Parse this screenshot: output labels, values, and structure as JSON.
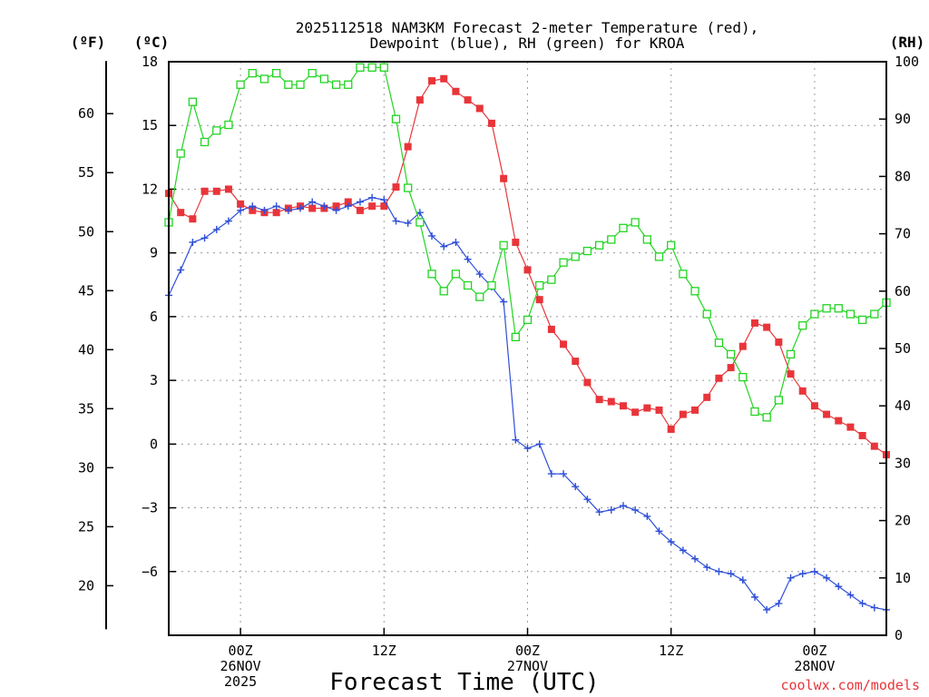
{
  "chart_data": {
    "type": "line",
    "title_line1": "2025112518 NAM3KM Forecast 2-meter Temperature (red),",
    "title_line2": "Dewpoint (blue), RH (green) for KROA",
    "xlabel": "Forecast Time (UTC)",
    "credit": "coolwx.com/models",
    "units": {
      "fahrenheit": "(ºF)",
      "celsius": "(ºC)",
      "rh": "(RH)"
    },
    "x_unit": "forecast hour from 2025-11-25 18Z",
    "xlim": [
      0,
      60
    ],
    "x_ticks": [
      {
        "hour": 6,
        "lines": [
          "00Z",
          "26NOV",
          "2025"
        ]
      },
      {
        "hour": 18,
        "lines": [
          "12Z"
        ]
      },
      {
        "hour": 30,
        "lines": [
          "00Z",
          "27NOV"
        ]
      },
      {
        "hour": 42,
        "lines": [
          "12Z"
        ]
      },
      {
        "hour": 54,
        "lines": [
          "00Z",
          "28NOV"
        ]
      }
    ],
    "celsius_axis": {
      "ylim": [
        -9,
        18
      ],
      "ticks": [
        "18",
        "15",
        "12",
        "9",
        "6",
        "3",
        "0",
        "−3",
        "−6"
      ]
    },
    "fahrenheit_axis": {
      "ticks": [
        "60",
        "55",
        "50",
        "45",
        "40",
        "35",
        "30",
        "25",
        "20"
      ]
    },
    "rh_axis": {
      "ylim": [
        0,
        100
      ],
      "ticks": [
        "100",
        "90",
        "80",
        "70",
        "60",
        "50",
        "40",
        "30",
        "20",
        "10",
        "0"
      ]
    },
    "series": [
      {
        "name": "2-meter Temperature (°C)",
        "color": "#e8353a",
        "marker": "filled-square",
        "axis": "celsius",
        "x": [
          0,
          1,
          2,
          3,
          4,
          5,
          6,
          7,
          8,
          9,
          10,
          11,
          12,
          13,
          14,
          15,
          16,
          17,
          18,
          19,
          20,
          21,
          22,
          23,
          24,
          25,
          26,
          27,
          28,
          29,
          30,
          31,
          32,
          33,
          34,
          35,
          36,
          37,
          38,
          39,
          40,
          41,
          42,
          43,
          44,
          45,
          46,
          47,
          48,
          49,
          50,
          51,
          52,
          53,
          54,
          55,
          56,
          57,
          58,
          59,
          60
        ],
        "values": [
          11.8,
          10.9,
          10.6,
          11.9,
          11.9,
          12.0,
          11.3,
          11.0,
          10.9,
          10.9,
          11.1,
          11.2,
          11.1,
          11.1,
          11.2,
          11.4,
          11.0,
          11.2,
          11.2,
          12.1,
          14.0,
          16.2,
          17.1,
          17.2,
          16.6,
          16.2,
          15.8,
          15.1,
          12.5,
          9.5,
          8.2,
          6.8,
          5.4,
          4.7,
          3.9,
          2.9,
          2.1,
          2.0,
          1.8,
          1.5,
          1.7,
          1.6,
          0.7,
          1.4,
          1.6,
          2.2,
          3.1,
          3.6,
          4.6,
          5.7,
          5.5,
          4.8,
          3.3,
          2.5,
          1.8,
          1.4,
          1.1,
          0.8,
          0.4,
          -0.1,
          -0.5
        ]
      },
      {
        "name": "Dewpoint (°C)",
        "color": "#2f4fd8",
        "marker": "plus",
        "axis": "celsius",
        "x": [
          0,
          1,
          2,
          3,
          4,
          5,
          6,
          7,
          8,
          9,
          10,
          11,
          12,
          13,
          14,
          15,
          16,
          17,
          18,
          19,
          20,
          21,
          22,
          23,
          24,
          25,
          26,
          27,
          28,
          29,
          30,
          31,
          32,
          33,
          34,
          35,
          36,
          37,
          38,
          39,
          40,
          41,
          42,
          43,
          44,
          45,
          46,
          47,
          48,
          49,
          50,
          51,
          52,
          53,
          54,
          55,
          56,
          57,
          58,
          59,
          60
        ],
        "values": [
          7.0,
          8.2,
          9.5,
          9.7,
          10.1,
          10.5,
          11.0,
          11.2,
          11.0,
          11.2,
          11.0,
          11.1,
          11.4,
          11.2,
          11.0,
          11.2,
          11.4,
          11.6,
          11.5,
          10.5,
          10.4,
          10.9,
          9.8,
          9.3,
          9.5,
          8.7,
          8.0,
          7.4,
          6.7,
          0.2,
          -0.2,
          0.0,
          -1.4,
          -1.4,
          -2.0,
          -2.6,
          -3.2,
          -3.1,
          -2.9,
          -3.1,
          -3.4,
          -4.1,
          -4.6,
          -5.0,
          -5.4,
          -5.8,
          -6.0,
          -6.1,
          -6.4,
          -7.2,
          -7.8,
          -7.5,
          -6.3,
          -6.1,
          -6.0,
          -6.3,
          -6.7,
          -7.1,
          -7.5,
          -7.7,
          -7.8
        ]
      },
      {
        "name": "RH (%)",
        "color": "#22d422",
        "marker": "open-square",
        "axis": "rh",
        "x": [
          0,
          1,
          2,
          3,
          4,
          5,
          6,
          7,
          8,
          9,
          10,
          11,
          12,
          13,
          14,
          15,
          16,
          17,
          18,
          19,
          20,
          21,
          22,
          23,
          24,
          25,
          26,
          27,
          28,
          29,
          30,
          31,
          32,
          33,
          34,
          35,
          36,
          37,
          38,
          39,
          40,
          41,
          42,
          43,
          44,
          45,
          46,
          47,
          48,
          49,
          50,
          51,
          52,
          53,
          54,
          55,
          56,
          57,
          58,
          59,
          60
        ],
        "values": [
          72,
          84,
          93,
          86,
          88,
          89,
          96,
          98,
          97,
          98,
          96,
          96,
          98,
          97,
          96,
          96,
          99,
          99,
          99,
          90,
          78,
          72,
          63,
          60,
          63,
          61,
          59,
          61,
          68,
          52,
          55,
          61,
          62,
          65,
          66,
          67,
          68,
          69,
          71,
          72,
          69,
          66,
          68,
          63,
          60,
          56,
          51,
          49,
          45,
          39,
          38,
          41,
          49,
          54,
          56,
          57,
          57,
          56,
          55,
          56,
          58
        ]
      }
    ]
  }
}
